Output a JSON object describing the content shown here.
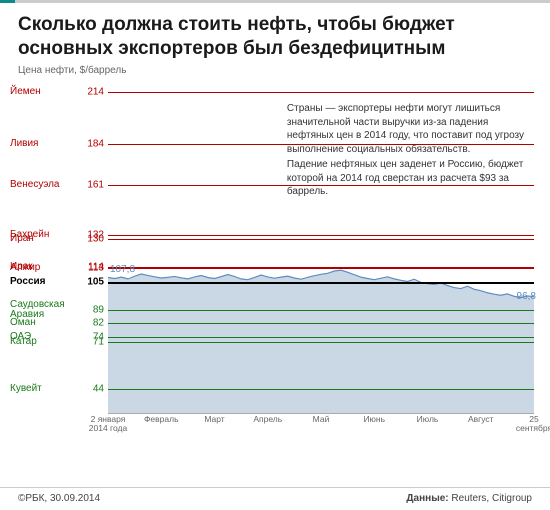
{
  "header": {
    "title": "Сколько должна стоить нефть, чтобы бюджет основных экспортеров был бездефицитным",
    "y_axis_label": "Цена нефти, $/баррель"
  },
  "chart": {
    "type": "line-with-thresholds",
    "y_domain": [
      30,
      220
    ],
    "background_color": "#ffffff",
    "area_fill": "#cad7e4",
    "line_color": "#5b8bbd",
    "line_width": 1.2,
    "countries": [
      {
        "name": "Йемен",
        "value": 214,
        "color": "#b20000",
        "group": "above"
      },
      {
        "name": "Ливия",
        "value": 184,
        "color": "#b20000",
        "group": "above"
      },
      {
        "name": "Венесуэла",
        "value": 161,
        "color": "#b20000",
        "group": "above"
      },
      {
        "name": "Бахрейн",
        "value": 132,
        "color": "#b20000",
        "group": "above"
      },
      {
        "name": "Иран",
        "value": 130,
        "color": "#b20000",
        "group": "above"
      },
      {
        "name": "Ирак",
        "value": 114,
        "color": "#b20000",
        "group": "above"
      },
      {
        "name": "Алжир",
        "value": 113,
        "color": "#b20000",
        "group": "above"
      },
      {
        "name": "Россия",
        "value": 105,
        "color": "#000000",
        "group": "russia"
      },
      {
        "name": "Саудовская Аравия",
        "value": 89,
        "color": "#1a7a1a",
        "group": "below"
      },
      {
        "name": "Оман",
        "value": 82,
        "color": "#1a7a1a",
        "group": "below"
      },
      {
        "name": "ОАЭ",
        "value": 74,
        "color": "#1a7a1a",
        "group": "below"
      },
      {
        "name": "Катар",
        "value": 71,
        "color": "#1a7a1a",
        "group": "below"
      },
      {
        "name": "Кувейт",
        "value": 44,
        "color": "#1a7a1a",
        "group": "below"
      }
    ],
    "notes": [
      {
        "text": "Страны — экспортеры нефти могут лишиться значительной части выручки из-за падения нефтяных цен в 2014 году, что поставит под угрозу выполнение социальных обязательств.",
        "top_value": 208,
        "left_pct": 42,
        "width_pct": 56
      },
      {
        "text": "Падение нефтяных цен заденет и Россию, бюджет которой на 2014 год сверстан из расчета $93 за баррель.",
        "top_value": 176,
        "left_pct": 42,
        "width_pct": 56
      }
    ],
    "price_series": {
      "start_label": "107,8",
      "end_label": "96,8",
      "points": [
        107.8,
        107.2,
        108.0,
        107.0,
        108.5,
        109.8,
        109.0,
        108.2,
        107.5,
        107.9,
        108.4,
        107.6,
        107.0,
        108.1,
        108.9,
        107.8,
        107.2,
        108.3,
        109.5,
        108.4,
        107.0,
        106.5,
        107.8,
        109.2,
        108.1,
        107.4,
        108.0,
        108.6,
        107.5,
        106.8,
        107.9,
        108.8,
        109.6,
        110.2,
        111.5,
        112.0,
        110.8,
        109.4,
        108.0,
        107.2,
        106.5,
        107.4,
        108.2,
        107.0,
        106.2,
        105.5,
        106.8,
        105.0,
        104.2,
        103.8,
        104.6,
        103.2,
        102.0,
        101.4,
        102.8,
        101.0,
        100.2,
        99.0,
        98.2,
        97.6,
        98.4,
        97.0,
        96.2,
        97.2,
        96.8
      ]
    },
    "x_ticks": [
      {
        "label_top": "2 января",
        "label_bottom": "2014 года",
        "pos": 0
      },
      {
        "label_top": "Февраль",
        "pos": 0.125
      },
      {
        "label_top": "Март",
        "pos": 0.25
      },
      {
        "label_top": "Апрель",
        "pos": 0.375
      },
      {
        "label_top": "Май",
        "pos": 0.5
      },
      {
        "label_top": "Июнь",
        "pos": 0.625
      },
      {
        "label_top": "Июль",
        "pos": 0.75
      },
      {
        "label_top": "Август",
        "pos": 0.875
      },
      {
        "label_top": "25 сентября",
        "pos": 1.0
      }
    ]
  },
  "footer": {
    "left": "©РБК, 30.09.2014",
    "right_label": "Данные:",
    "right_value": "Reuters, Citigroup"
  }
}
